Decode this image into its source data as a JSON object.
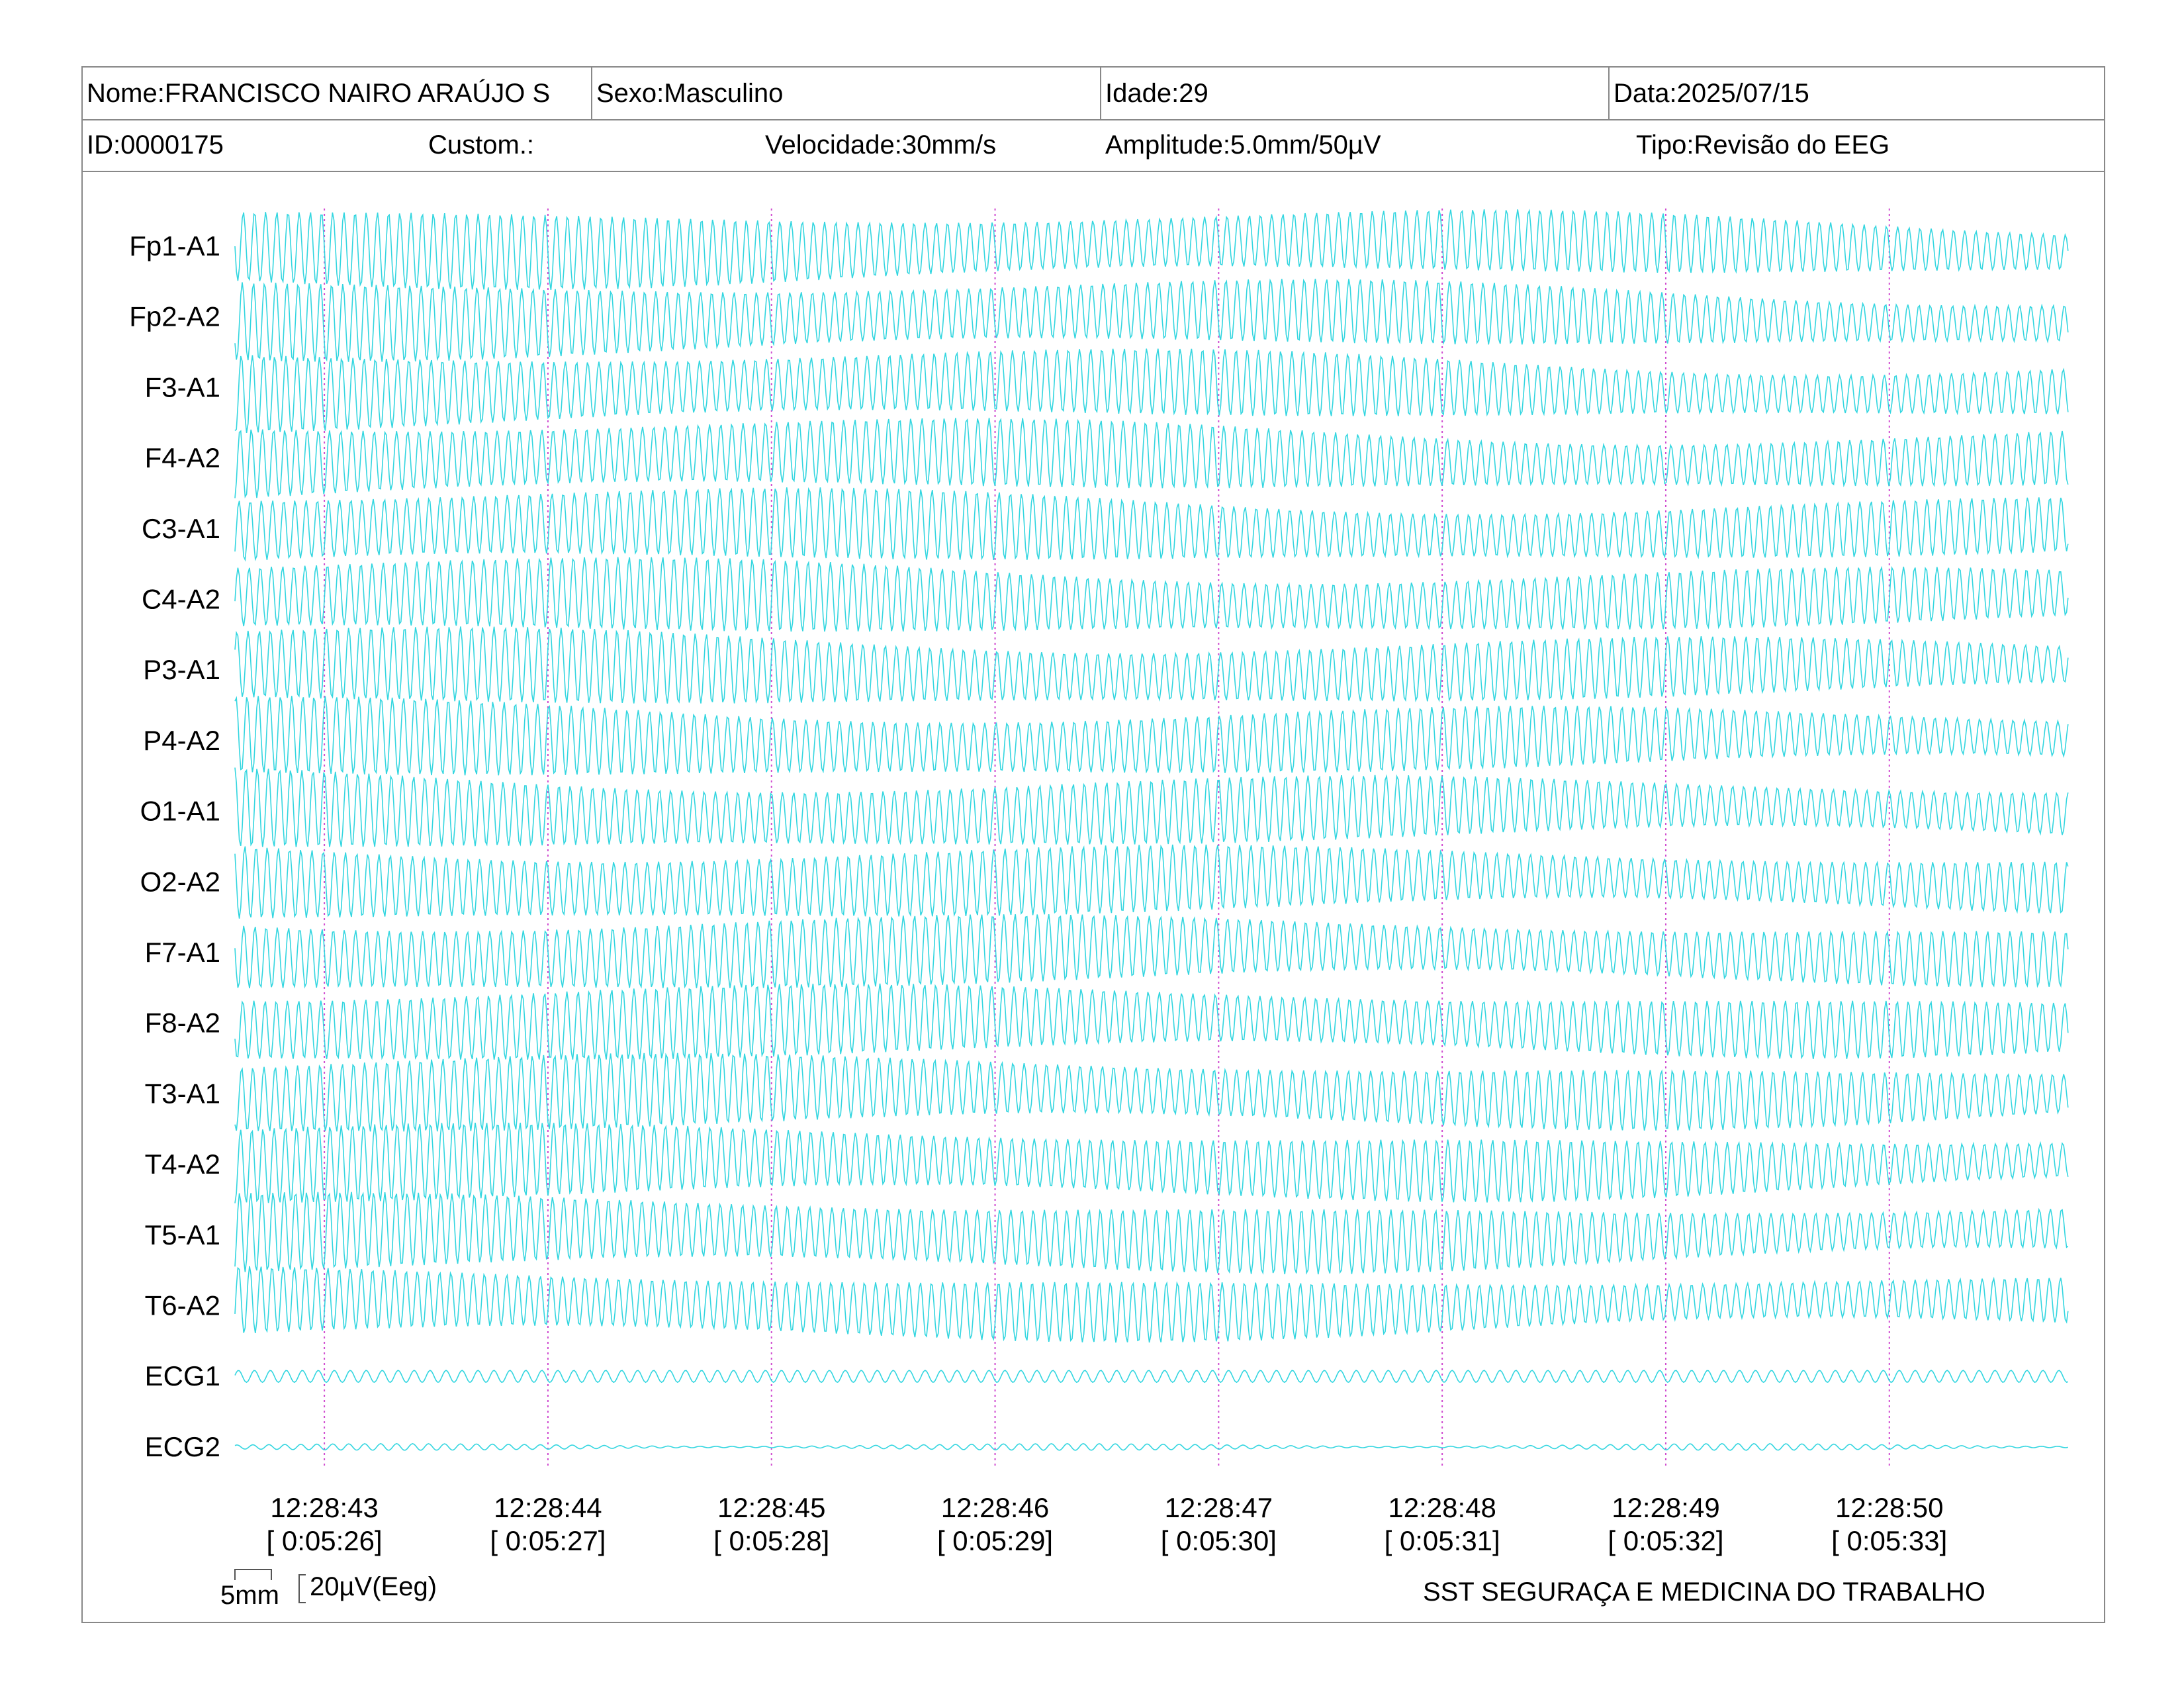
{
  "header": {
    "name": "Nome:FRANCISCO NAIRO ARAÚJO S",
    "sex": "Sexo:Masculino",
    "age": "Idade:29",
    "date": "Data:2025/07/15",
    "id": "ID:0000175",
    "custom": "Custom.:",
    "speed": "Velocidade:30mm/s",
    "amplitude": "Amplitude:5.0mm/50µV",
    "type": "Tipo:Revisão do EEG"
  },
  "colors": {
    "trace": "#33d6e0",
    "marker": "#d04bd0",
    "border": "#888888"
  },
  "chart_data": {
    "type": "line",
    "title": "",
    "channels": [
      "Fp1-A1",
      "Fp2-A2",
      "F3-A1",
      "F4-A2",
      "C3-A1",
      "C4-A2",
      "P3-A1",
      "P4-A2",
      "O1-A1",
      "O2-A2",
      "F7-A1",
      "F8-A2",
      "T3-A1",
      "T4-A2",
      "T5-A1",
      "T6-A2",
      "ECG1",
      "ECG2"
    ],
    "time_start": "12:28:42.6",
    "time_end": "12:28:50.8",
    "time_ticks": [
      {
        "clock": "12:28:43",
        "elapsed": "[ 0:05:26]"
      },
      {
        "clock": "12:28:44",
        "elapsed": "[ 0:05:27]"
      },
      {
        "clock": "12:28:45",
        "elapsed": "[ 0:05:28]"
      },
      {
        "clock": "12:28:46",
        "elapsed": "[ 0:05:29]"
      },
      {
        "clock": "12:28:47",
        "elapsed": "[ 0:05:30]"
      },
      {
        "clock": "12:28:48",
        "elapsed": "[ 0:05:31]"
      },
      {
        "clock": "12:28:49",
        "elapsed": "[ 0:05:32]"
      },
      {
        "clock": "12:28:50",
        "elapsed": "[ 0:05:33]"
      }
    ],
    "eeg_frequency_hz": 20,
    "ecg_frequency_hz": 14,
    "scale_bar": {
      "time": "5mm",
      "amplitude": "20µV(Eeg)"
    },
    "grid": false
  },
  "footer": {
    "organization": "SST SEGURAÇA E MEDICINA DO TRABALHO"
  }
}
